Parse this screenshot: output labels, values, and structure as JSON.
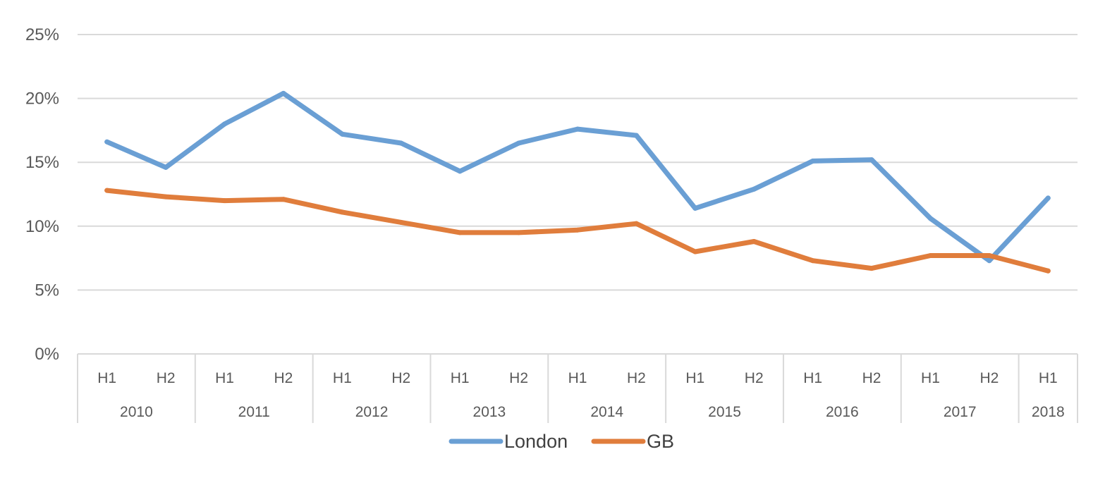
{
  "chart_data": {
    "type": "line",
    "title": "",
    "xlabel": "",
    "ylabel": "",
    "ylim": [
      0,
      25
    ],
    "y_ticks": [
      {
        "value": 0,
        "label": "0%"
      },
      {
        "value": 5,
        "label": "5%"
      },
      {
        "value": 10,
        "label": "10%"
      },
      {
        "value": 15,
        "label": "15%"
      },
      {
        "value": 20,
        "label": "20%"
      },
      {
        "value": 25,
        "label": "25%"
      }
    ],
    "grid": true,
    "categories": [
      "H1",
      "H2",
      "H1",
      "H2",
      "H1",
      "H2",
      "H1",
      "H2",
      "H1",
      "H2",
      "H1",
      "H2",
      "H1",
      "H2",
      "H1",
      "H2",
      "H1"
    ],
    "groups": [
      {
        "label": "2010",
        "span": 2
      },
      {
        "label": "2011",
        "span": 2
      },
      {
        "label": "2012",
        "span": 2
      },
      {
        "label": "2013",
        "span": 2
      },
      {
        "label": "2014",
        "span": 2
      },
      {
        "label": "2015",
        "span": 2
      },
      {
        "label": "2016",
        "span": 2
      },
      {
        "label": "2017",
        "span": 2
      },
      {
        "label": "2018",
        "span": 1
      }
    ],
    "series": [
      {
        "name": "London",
        "color": "#6a9fd4",
        "values": [
          16.6,
          14.6,
          18.0,
          20.4,
          17.2,
          16.5,
          14.3,
          16.5,
          17.6,
          17.1,
          11.4,
          12.9,
          15.1,
          15.2,
          10.6,
          7.3,
          12.2
        ]
      },
      {
        "name": "GB",
        "color": "#e07d3c",
        "values": [
          12.8,
          12.3,
          12.0,
          12.1,
          11.1,
          10.3,
          9.5,
          9.5,
          9.7,
          10.2,
          8.0,
          8.8,
          7.3,
          6.7,
          7.7,
          7.7,
          6.5
        ]
      }
    ],
    "legend_position": "bottom-center"
  }
}
